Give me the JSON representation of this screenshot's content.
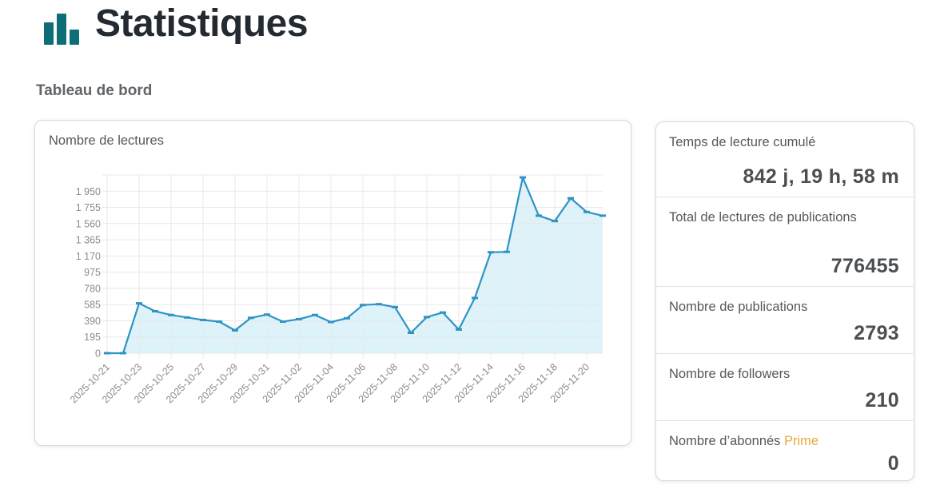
{
  "page": {
    "title": "Statistiques",
    "subtitle": "Tableau de bord"
  },
  "colors": {
    "icon_teal": "#0e6e76",
    "line_blue": "#2e93c6",
    "area_fill": "#ddf3f9",
    "grid": "#e8e8e8",
    "axis_text": "#8a8a8a",
    "prime_accent": "#e9a93d"
  },
  "chart_data": {
    "type": "area",
    "title": "Nombre de lectures",
    "x": [
      "2025-10-21",
      "2025-10-22",
      "2025-10-23",
      "2025-10-24",
      "2025-10-25",
      "2025-10-26",
      "2025-10-27",
      "2025-10-28",
      "2025-10-29",
      "2025-10-30",
      "2025-10-31",
      "2025-11-01",
      "2025-11-02",
      "2025-11-03",
      "2025-11-04",
      "2025-11-05",
      "2025-11-06",
      "2025-11-07",
      "2025-11-08",
      "2025-11-09",
      "2025-11-10",
      "2025-11-11",
      "2025-11-12",
      "2025-11-13",
      "2025-11-14",
      "2025-11-15",
      "2025-11-16",
      "2025-11-17",
      "2025-11-18",
      "2025-11-19",
      "2025-11-20",
      "2025-11-21"
    ],
    "values": [
      0,
      0,
      600,
      505,
      460,
      430,
      400,
      380,
      275,
      425,
      465,
      380,
      410,
      460,
      375,
      420,
      580,
      590,
      555,
      245,
      435,
      490,
      285,
      665,
      1215,
      1220,
      2115,
      1655,
      1590,
      1865,
      1700,
      1655
    ],
    "x_tick_labels": [
      "2025-10-21",
      "2025-10-23",
      "2025-10-25",
      "2025-10-27",
      "2025-10-29",
      "2025-10-31",
      "2025-11-02",
      "2025-11-04",
      "2025-11-06",
      "2025-11-08",
      "2025-11-10",
      "2025-11-12",
      "2025-11-14",
      "2025-11-16",
      "2025-11-18",
      "2025-11-20"
    ],
    "x_tick_every": 2,
    "y_tick_step": 195,
    "y_tick_labels": [
      "0",
      "195",
      "390",
      "585",
      "780",
      "975",
      "1 170",
      "1 365",
      "1 560",
      "1 755",
      "1 950"
    ],
    "ylim": [
      0,
      2145
    ],
    "grid": true,
    "legend": "none"
  },
  "stats_panel": {
    "items": [
      {
        "label": "Temps de lecture cumulé",
        "accent": "",
        "value": "842 j, 19 h, 58 m"
      },
      {
        "label": "Total de lectures de publications",
        "accent": "",
        "value": "776455"
      },
      {
        "label": "Nombre de publications",
        "accent": "",
        "value": "2793"
      },
      {
        "label": "Nombre de followers",
        "accent": "",
        "value": "210"
      },
      {
        "label": "Nombre d’abonnés",
        "accent": "Prime",
        "value": "0"
      }
    ]
  }
}
